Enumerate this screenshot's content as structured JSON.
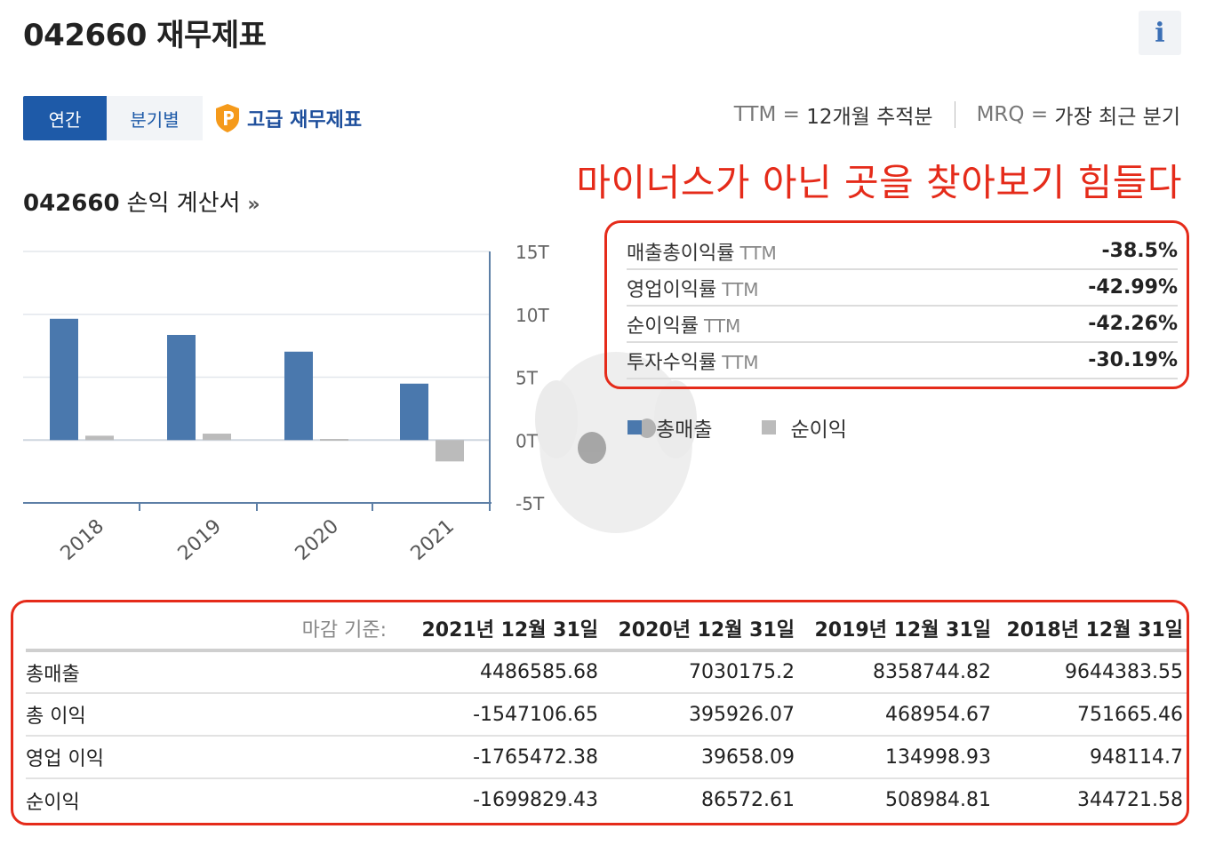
{
  "header": {
    "title": "042660 재무제표",
    "info_icon": "i"
  },
  "tabs": [
    {
      "label": "연간",
      "active": true
    },
    {
      "label": "분기별",
      "active": false
    }
  ],
  "premium": {
    "label": "고급 재무제표",
    "icon": "premium-p-shield-icon"
  },
  "legend_top": {
    "ttm_key": "TTM =",
    "ttm_desc": "12개월 추적분",
    "mrq_key": "MRQ =",
    "mrq_desc": "가장 최근 분기"
  },
  "annotation": "마이너스가 아닌 곳을 찾아보기 힘들다",
  "section": {
    "code": "042660",
    "title": "손익 계산서",
    "chevron": "»"
  },
  "chart_data": {
    "type": "bar",
    "categories": [
      "2018",
      "2019",
      "2020",
      "2021"
    ],
    "series": [
      {
        "name": "총매출",
        "values": [
          9644383.55,
          8358744.82,
          7030175.2,
          4486585.68
        ],
        "color": "#4a78ad"
      },
      {
        "name": "순이익",
        "values": [
          344721.58,
          508984.81,
          86572.61,
          -1699829.43
        ],
        "color": "#bbbbbb"
      }
    ],
    "y_ticks": [
      "15T",
      "10T",
      "5T",
      "0T",
      "-5T"
    ],
    "ylim": [
      -5000000,
      15000000
    ],
    "grid": true,
    "axis_position": "right"
  },
  "ratios": [
    {
      "label": "매출총이익률",
      "ttm": "TTM",
      "value": "-38.5%"
    },
    {
      "label": "영업이익률",
      "ttm": "TTM",
      "value": "-42.99%"
    },
    {
      "label": "순이익률",
      "ttm": "TTM",
      "value": "-42.26%"
    },
    {
      "label": "투자수익률",
      "ttm": "TTM",
      "value": "-30.19%"
    }
  ],
  "chart_legend": [
    {
      "label": "총매출",
      "color": "#4a78ad"
    },
    {
      "label": "순이익",
      "color": "#bbbbbb"
    }
  ],
  "table": {
    "basis_label": "마감 기준:",
    "columns": [
      "2021년 12월 31일",
      "2020년 12월 31일",
      "2019년 12월 31일",
      "2018년 12월 31일"
    ],
    "rows": [
      {
        "label": "총매출",
        "values": [
          "4486585.68",
          "7030175.2",
          "8358744.82",
          "9644383.55"
        ]
      },
      {
        "label": "총 이익",
        "values": [
          "-1547106.65",
          "395926.07",
          "468954.67",
          "751665.46"
        ]
      },
      {
        "label": "영업 이익",
        "values": [
          "-1765472.38",
          "39658.09",
          "134998.93",
          "948114.7"
        ]
      },
      {
        "label": "순이익",
        "values": [
          "-1699829.43",
          "86572.61",
          "508984.81",
          "344721.58"
        ]
      }
    ]
  }
}
